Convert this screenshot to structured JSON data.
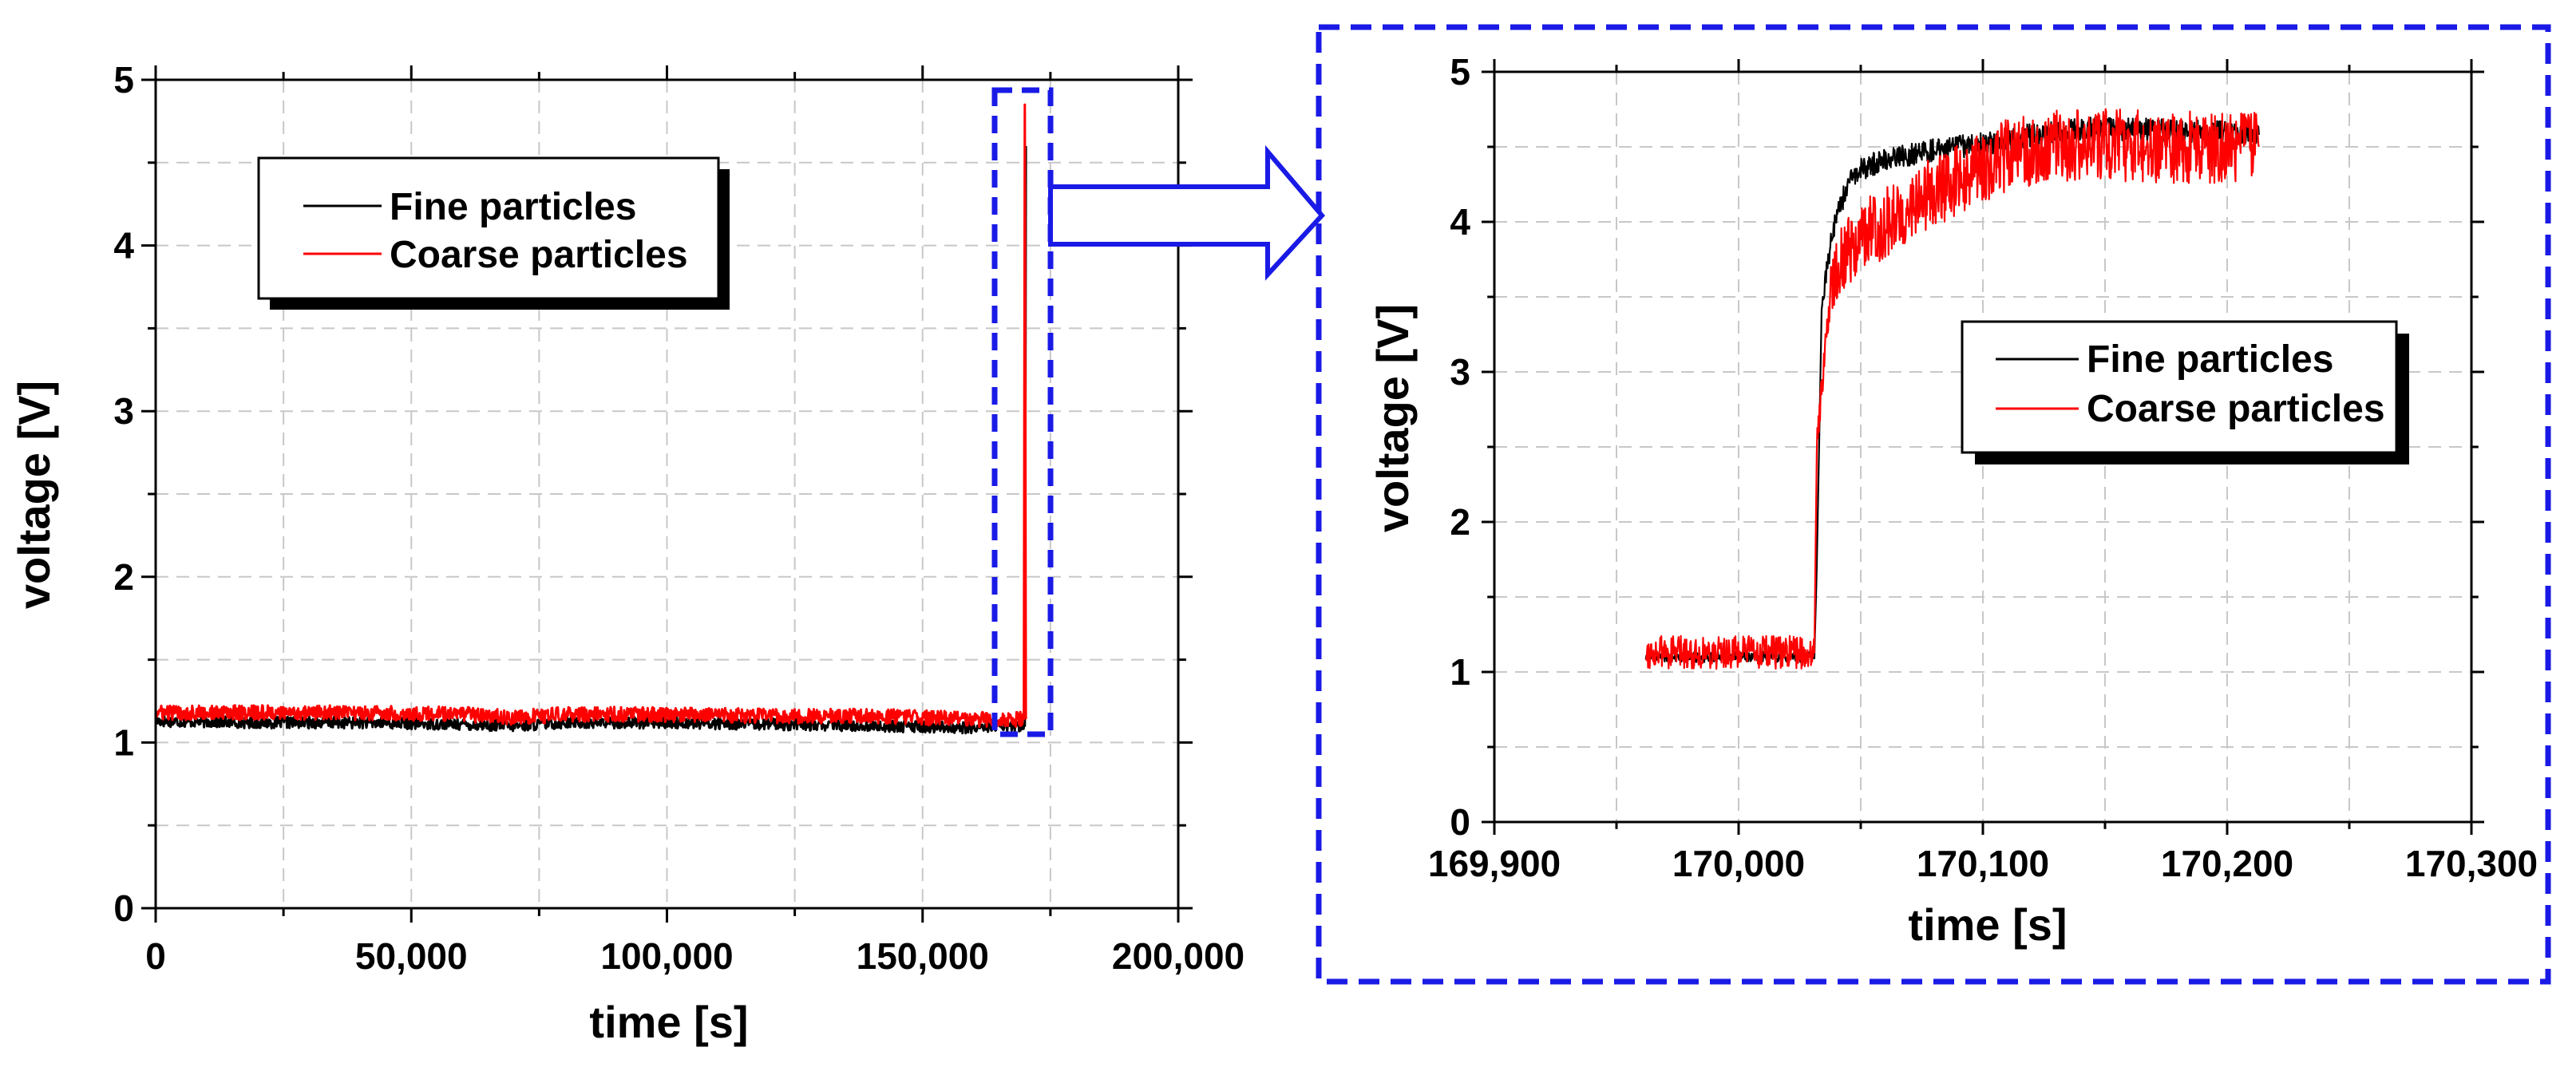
{
  "chart_data": [
    {
      "type": "line",
      "xlabel": "time [s]",
      "ylabel": "voltage [V]",
      "xlim": [
        0,
        200000
      ],
      "ylim": [
        0,
        5
      ],
      "xticks": [
        "0",
        "50,000",
        "100,000",
        "150,000",
        "200,000"
      ],
      "yticks": [
        "0",
        "1",
        "2",
        "3",
        "4",
        "5"
      ],
      "grid": true,
      "legend_position": "top-left",
      "series": [
        {
          "name": "Fine particles",
          "color": "#000000",
          "x": [
            0,
            20000,
            40000,
            60000,
            70000,
            80000,
            100000,
            120000,
            140000,
            160000,
            164000,
            169000,
            170000,
            170200
          ],
          "y": [
            1.13,
            1.12,
            1.12,
            1.11,
            1.1,
            1.12,
            1.12,
            1.11,
            1.1,
            1.09,
            1.1,
            1.1,
            1.1,
            4.6
          ]
        },
        {
          "name": "Coarse particles",
          "color": "#ff0000",
          "x": [
            0,
            20000,
            40000,
            60000,
            70000,
            80000,
            100000,
            120000,
            140000,
            160000,
            164000,
            168000,
            169000,
            169800,
            170000,
            170200
          ],
          "y": [
            1.18,
            1.18,
            1.18,
            1.17,
            1.15,
            1.17,
            1.17,
            1.16,
            1.16,
            1.14,
            1.14,
            1.14,
            1.14,
            1.14,
            4.85,
            1.14
          ]
        }
      ]
    },
    {
      "type": "line",
      "xlabel": "time [s]",
      "ylabel": "voltage [V]",
      "xlim": [
        169900,
        170300
      ],
      "ylim": [
        0,
        5
      ],
      "xticks": [
        "169,900",
        "170,000",
        "170,100",
        "170,200",
        "170,300"
      ],
      "yticks": [
        "0",
        "1",
        "2",
        "3",
        "4",
        "5"
      ],
      "grid": true,
      "legend_position": "center-right",
      "series": [
        {
          "name": "Fine particles",
          "color": "#000000",
          "x": [
            169962,
            169990,
            170020,
            170031,
            170032,
            170034,
            170036,
            170040,
            170045,
            170050,
            170060,
            170070,
            170080,
            170090,
            170100,
            170120,
            170140,
            170160,
            170180,
            170200,
            170213
          ],
          "y": [
            1.1,
            1.1,
            1.1,
            1.1,
            1.7,
            3.4,
            3.7,
            4.05,
            4.25,
            4.35,
            4.42,
            4.45,
            4.48,
            4.5,
            4.52,
            4.58,
            4.62,
            4.62,
            4.6,
            4.6,
            4.58
          ]
        },
        {
          "name": "Coarse particles",
          "color": "#ff0000",
          "x": [
            169962,
            169990,
            170020,
            170031,
            170032,
            170034,
            170036,
            170038,
            170040,
            170045,
            170050,
            170060,
            170070,
            170080,
            170090,
            170100,
            170110,
            170130,
            170150,
            170170,
            170190,
            170213
          ],
          "y": [
            1.13,
            1.13,
            1.13,
            1.13,
            2.5,
            2.9,
            3.25,
            3.55,
            3.72,
            3.82,
            3.9,
            4.0,
            4.1,
            4.2,
            4.28,
            4.35,
            4.45,
            4.5,
            4.52,
            4.5,
            4.5,
            4.5
          ]
        }
      ]
    }
  ]
}
